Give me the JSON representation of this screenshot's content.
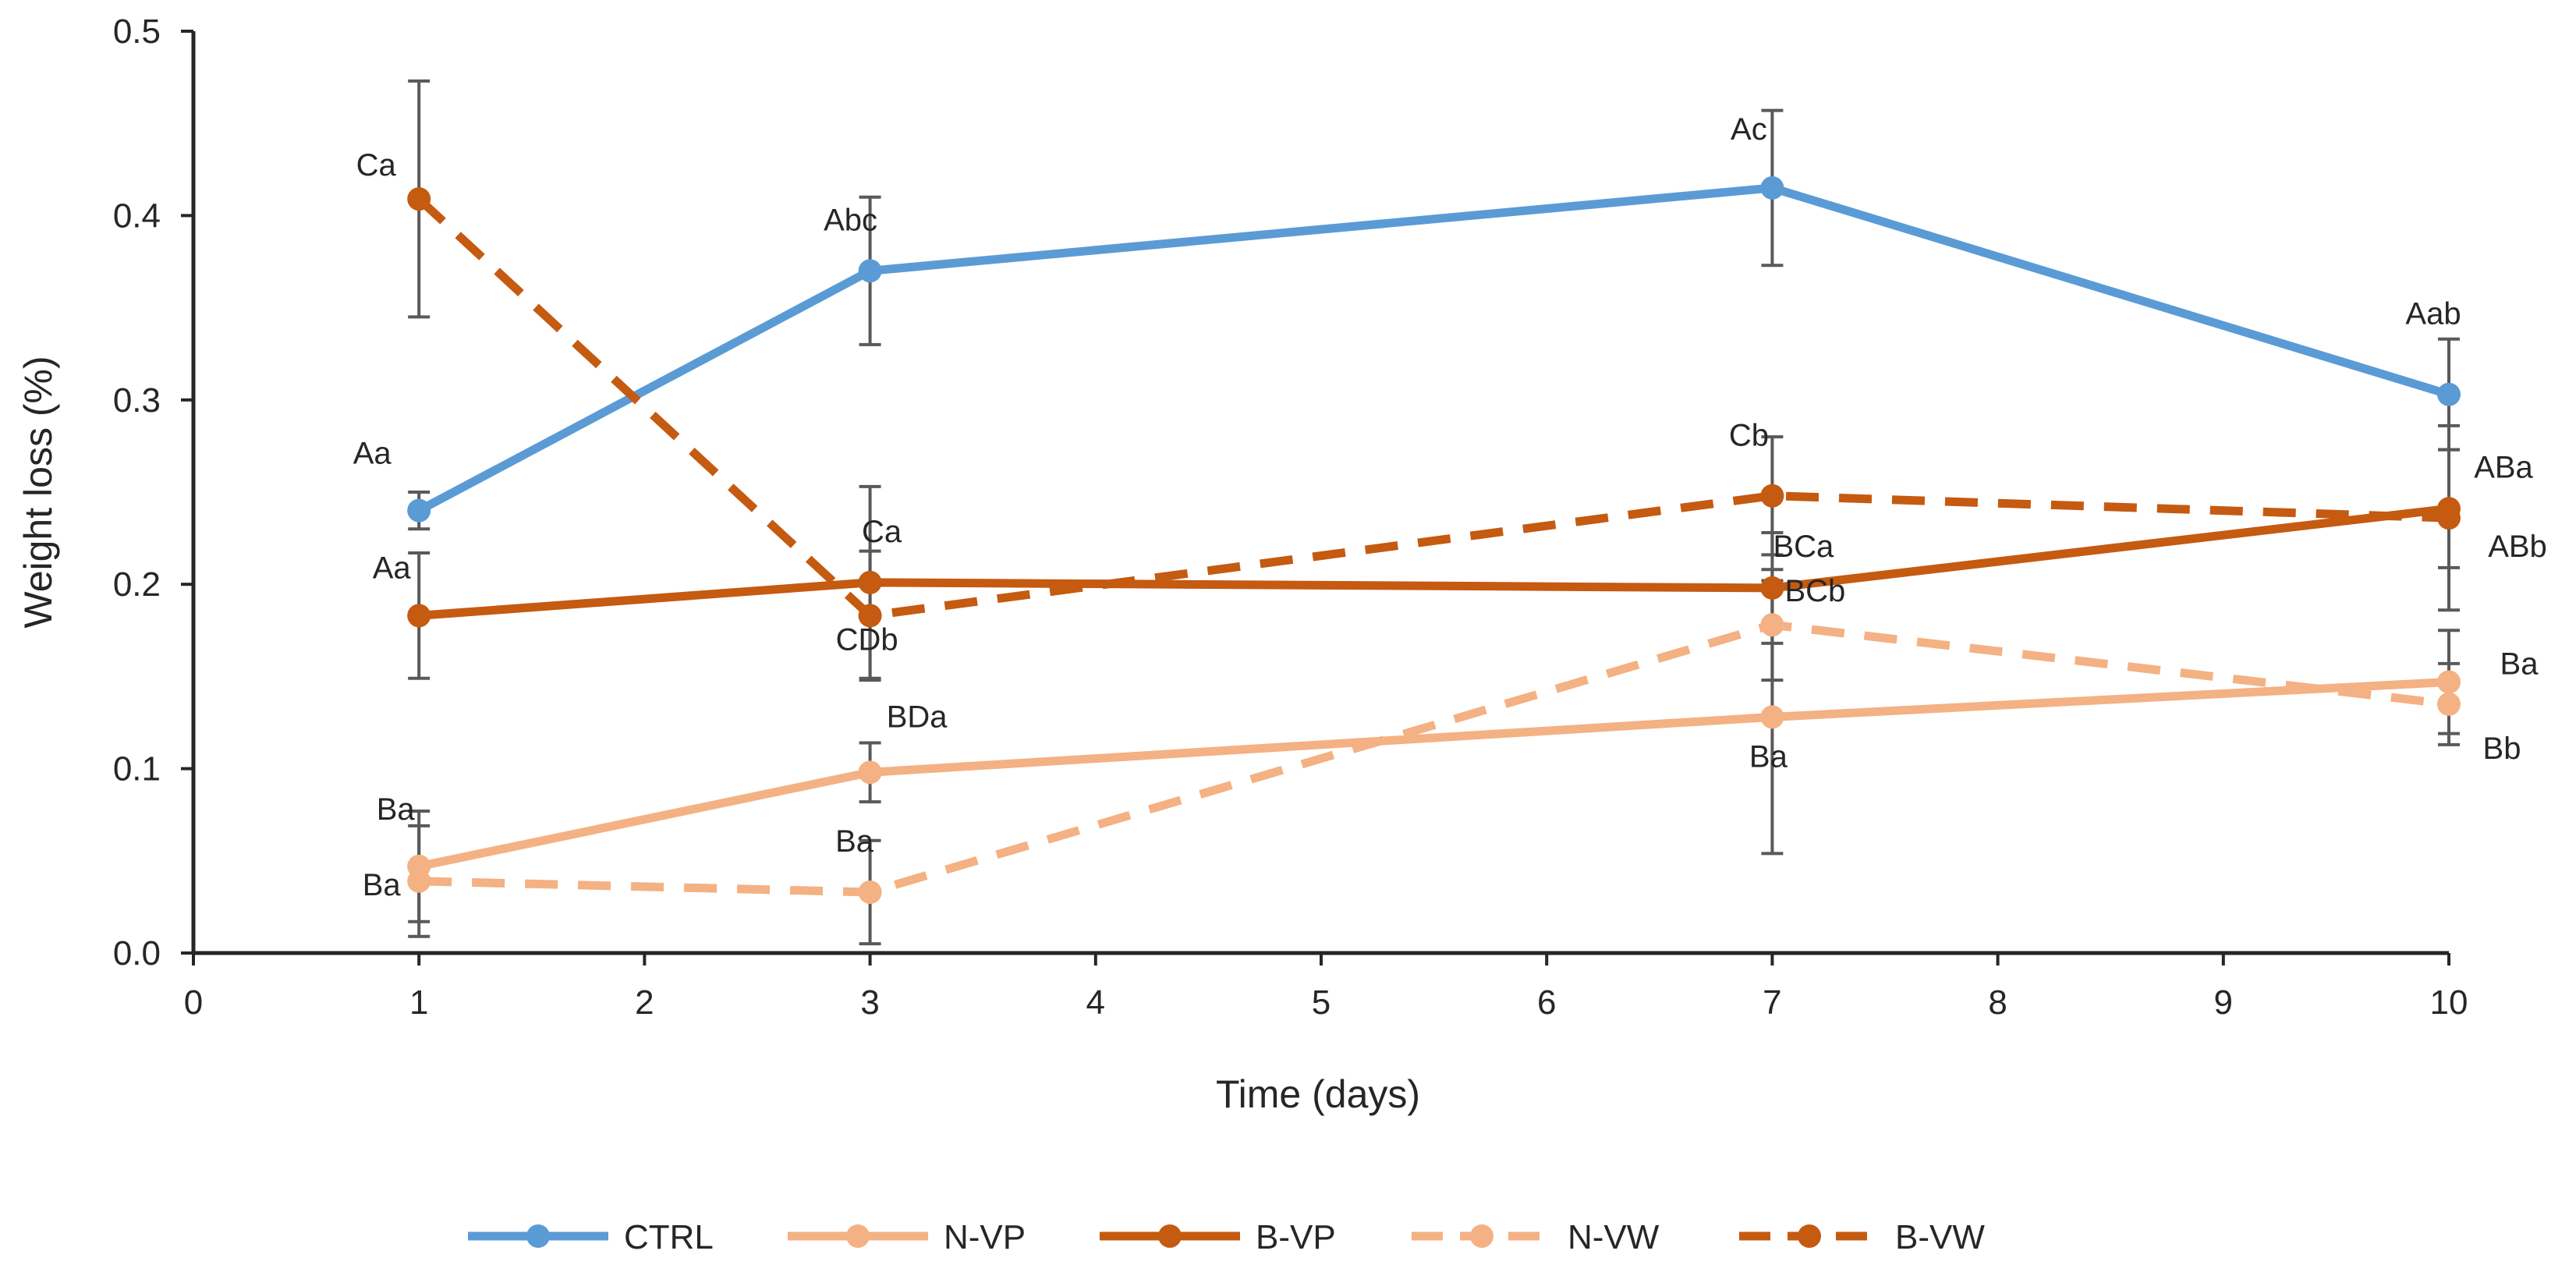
{
  "chart_data": {
    "type": "line",
    "title": "",
    "xlabel": "Time (days)",
    "ylabel": "Weight loss (%)",
    "xlim": [
      0,
      10
    ],
    "ylim": [
      0,
      0.5
    ],
    "x_ticks": [
      0,
      1,
      2,
      3,
      4,
      5,
      6,
      7,
      8,
      9,
      10
    ],
    "y_ticks": [
      0.0,
      0.1,
      0.2,
      0.3,
      0.4,
      0.5
    ],
    "y_tick_labels": [
      "0.0",
      "0.1",
      "0.2",
      "0.3",
      "0.4",
      "0.5"
    ],
    "grid": false,
    "legend_position": "bottom",
    "series": [
      {
        "name": "CTRL",
        "color": "#5B9BD5",
        "dash": "solid",
        "x": [
          1,
          3,
          7,
          10
        ],
        "y": [
          0.24,
          0.37,
          0.415,
          0.303
        ],
        "err": [
          0.01,
          0.04,
          0.042,
          0.03
        ],
        "labels": [
          "Aa",
          "Abc",
          "Ac",
          "Aab"
        ]
      },
      {
        "name": "N-VP",
        "color": "#F4B183",
        "dash": "solid",
        "x": [
          1,
          3,
          7,
          10
        ],
        "y": [
          0.047,
          0.098,
          0.128,
          0.147
        ],
        "err": [
          0.03,
          0.016,
          0.074,
          0.028
        ],
        "labels": [
          "Ba",
          "BDa",
          "Ba",
          "Ba"
        ]
      },
      {
        "name": "B-VP",
        "color": "#C55A11",
        "dash": "solid",
        "x": [
          1,
          3,
          7,
          10
        ],
        "y": [
          0.183,
          0.201,
          0.198,
          0.241
        ],
        "err": [
          0.034,
          0.052,
          0.03,
          0.032
        ],
        "labels": [
          "Aa",
          "Ca",
          "BCa",
          "ABa"
        ]
      },
      {
        "name": "N-VW",
        "color": "#F4B183",
        "dash": "dashed",
        "x": [
          1,
          3,
          7,
          10
        ],
        "y": [
          0.039,
          0.033,
          0.178,
          0.135
        ],
        "err": [
          0.03,
          0.028,
          0.03,
          0.022
        ],
        "labels": [
          "Ba",
          "Ba",
          "BCb",
          "Bb"
        ]
      },
      {
        "name": "B-VW",
        "color": "#C55A11",
        "dash": "dashed",
        "x": [
          1,
          3,
          7,
          10
        ],
        "y": [
          0.409,
          0.183,
          0.248,
          0.236
        ],
        "err": [
          0.064,
          0.035,
          0.032,
          0.05
        ],
        "labels": [
          "Ca",
          "CDb",
          "Cb",
          "ABb"
        ]
      }
    ]
  }
}
